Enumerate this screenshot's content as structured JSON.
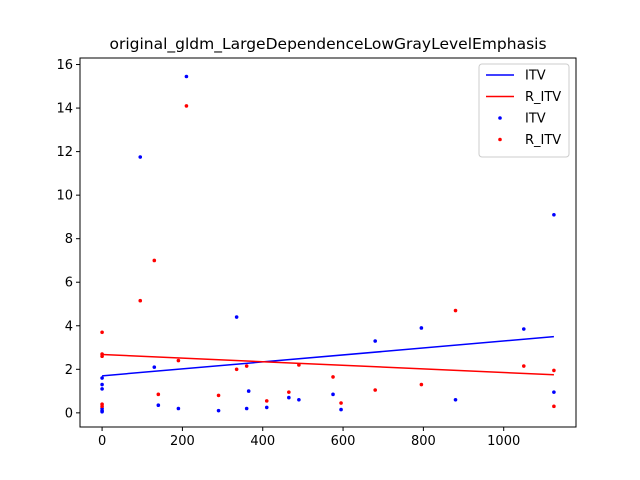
{
  "chart_data": {
    "type": "scatter",
    "title": "original_gldm_LargeDependenceLowGrayLevelEmphasis",
    "xlabel": "",
    "ylabel": "",
    "xlim": [
      -55,
      1180
    ],
    "ylim": [
      -0.65,
      16.3
    ],
    "x_ticks": [
      0,
      200,
      400,
      600,
      800,
      1000
    ],
    "x_tick_labels": [
      "0",
      "200",
      "400",
      "600",
      "800",
      "1000"
    ],
    "y_ticks": [
      0,
      2,
      4,
      6,
      8,
      10,
      12,
      14,
      16
    ],
    "y_tick_labels": [
      "0",
      "2",
      "4",
      "6",
      "8",
      "10",
      "12",
      "14",
      "16"
    ],
    "grid": false,
    "legend_position": "top-right",
    "legend": [
      {
        "label": "ITV",
        "kind": "line",
        "color": "#0000ff"
      },
      {
        "label": "R_ITV",
        "kind": "line",
        "color": "#ff0000"
      },
      {
        "label": "ITV",
        "kind": "marker",
        "color": "#0000ff"
      },
      {
        "label": "R_ITV",
        "kind": "marker",
        "color": "#ff0000"
      }
    ],
    "series": [
      {
        "name": "ITV",
        "color": "#0000ff",
        "points": [
          [
            0,
            0.05
          ],
          [
            0,
            0.1
          ],
          [
            0,
            0.2
          ],
          [
            0,
            1.1
          ],
          [
            0,
            1.3
          ],
          [
            0,
            1.6
          ],
          [
            95,
            11.75
          ],
          [
            130,
            2.1
          ],
          [
            140,
            0.35
          ],
          [
            190,
            0.2
          ],
          [
            210,
            15.45
          ],
          [
            290,
            0.1
          ],
          [
            335,
            4.4
          ],
          [
            360,
            0.2
          ],
          [
            365,
            1.0
          ],
          [
            410,
            0.25
          ],
          [
            465,
            0.7
          ],
          [
            490,
            0.6
          ],
          [
            575,
            0.85
          ],
          [
            595,
            0.15
          ],
          [
            680,
            3.3
          ],
          [
            795,
            3.9
          ],
          [
            880,
            0.6
          ],
          [
            1050,
            3.85
          ],
          [
            1125,
            9.1
          ],
          [
            1125,
            0.95
          ]
        ],
        "fit": {
          "x": [
            0,
            1125
          ],
          "y": [
            1.7,
            3.5
          ]
        }
      },
      {
        "name": "R_ITV",
        "color": "#ff0000",
        "points": [
          [
            0,
            3.7
          ],
          [
            0,
            2.6
          ],
          [
            0,
            2.7
          ],
          [
            0,
            0.4
          ],
          [
            0,
            0.3
          ],
          [
            95,
            5.15
          ],
          [
            130,
            7.0
          ],
          [
            140,
            0.85
          ],
          [
            190,
            2.4
          ],
          [
            210,
            14.1
          ],
          [
            290,
            0.8
          ],
          [
            335,
            2.0
          ],
          [
            360,
            2.15
          ],
          [
            410,
            0.55
          ],
          [
            465,
            0.95
          ],
          [
            490,
            2.2
          ],
          [
            575,
            1.65
          ],
          [
            595,
            0.45
          ],
          [
            680,
            1.05
          ],
          [
            795,
            1.3
          ],
          [
            880,
            4.7
          ],
          [
            1050,
            2.15
          ],
          [
            1125,
            1.95
          ],
          [
            1125,
            0.3
          ]
        ],
        "fit": {
          "x": [
            0,
            1125
          ],
          "y": [
            2.68,
            1.75
          ]
        }
      }
    ]
  }
}
